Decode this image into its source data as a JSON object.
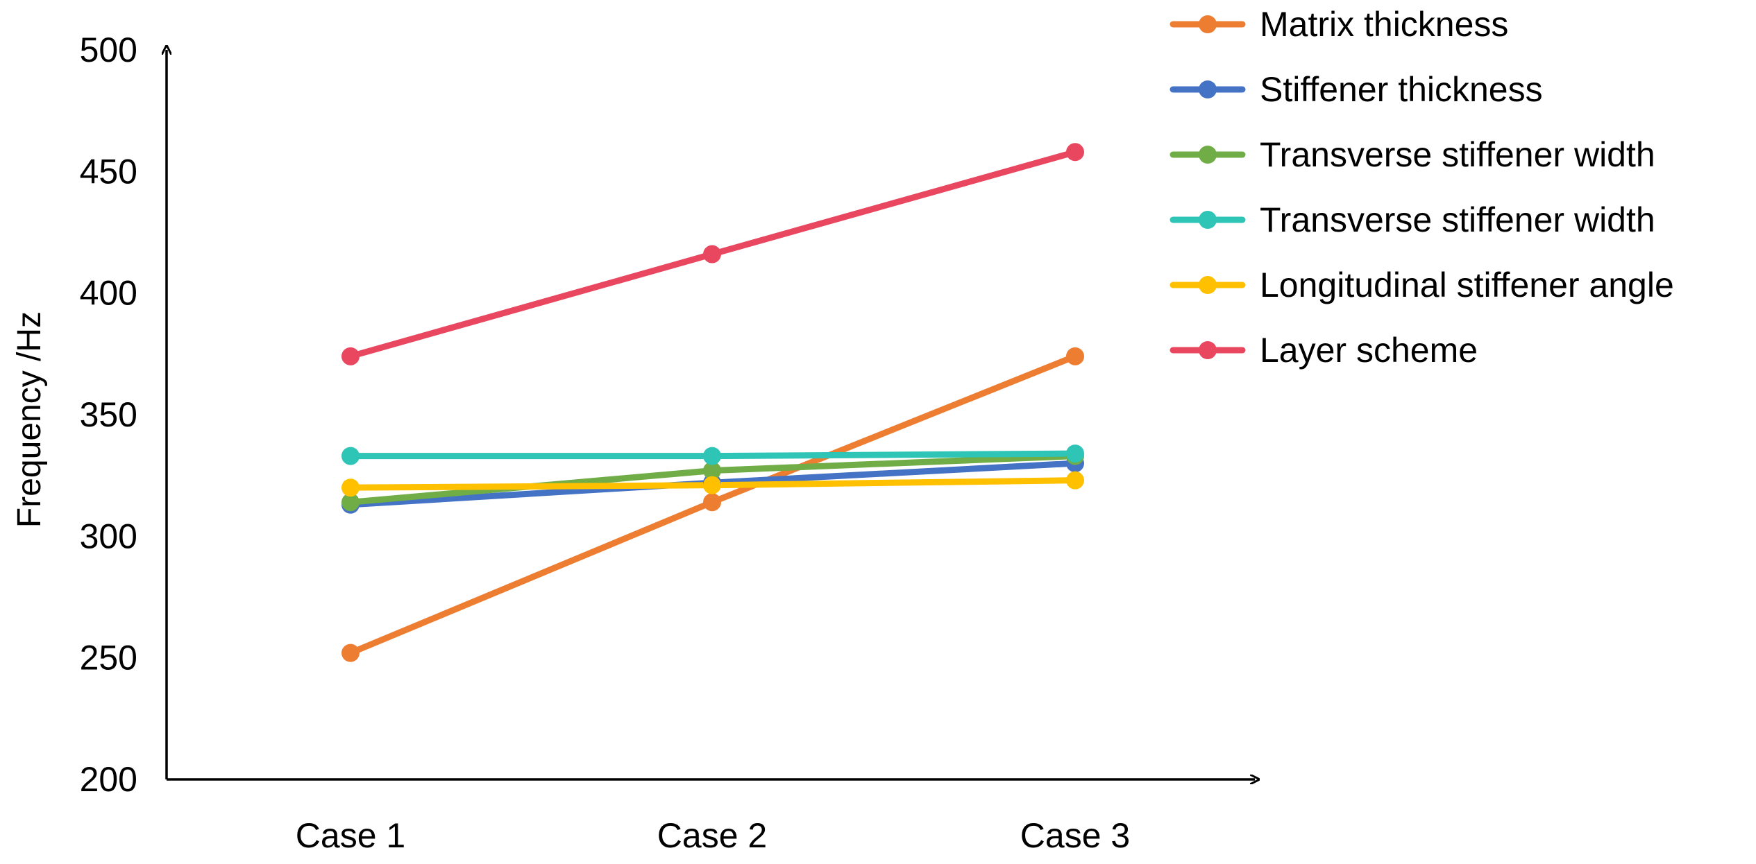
{
  "chart_data": {
    "type": "line",
    "title": "",
    "xlabel": "",
    "ylabel": "Frequency /Hz",
    "categories": [
      "Case 1",
      "Case 2",
      "Case 3"
    ],
    "ylim": [
      200,
      500
    ],
    "yticks": [
      "200",
      "250",
      "300",
      "350",
      "400",
      "450",
      "500"
    ],
    "grid": false,
    "legend_position": "top-right",
    "series": [
      {
        "name": "Matrix thickness",
        "color": "#ED7D31",
        "values": [
          252,
          314,
          374
        ]
      },
      {
        "name": "Stiffener thickness",
        "color": "#4472C4",
        "values": [
          313,
          322,
          330
        ]
      },
      {
        "name": "Transverse stiffener width",
        "color": "#70AD47",
        "values": [
          314,
          327,
          333
        ]
      },
      {
        "name": "Transverse stiffener width",
        "color": "#2EC4B6",
        "values": [
          333,
          333,
          334
        ]
      },
      {
        "name": "Longitudinal stiffener angle",
        "color": "#FFC000",
        "values": [
          320,
          321,
          323
        ]
      },
      {
        "name": "Layer scheme",
        "color": "#E8475F",
        "values": [
          374,
          416,
          458
        ]
      }
    ]
  }
}
